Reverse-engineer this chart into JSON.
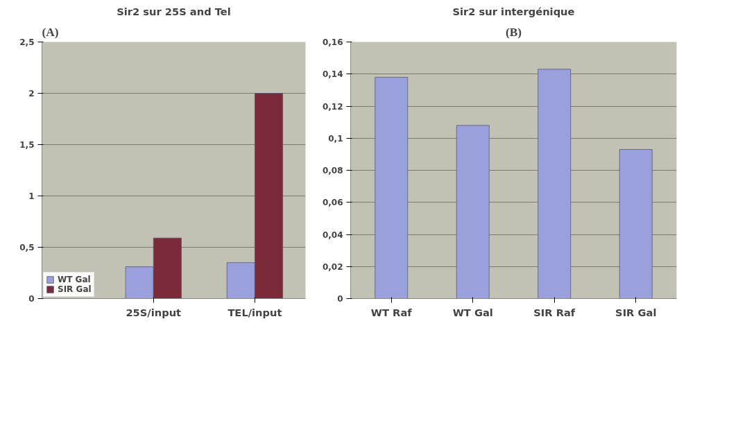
{
  "chart_data": [
    {
      "type": "bar",
      "title": "Sir2 sur 25S and Tel",
      "annotations": [
        "(A)"
      ],
      "categories": [
        "25S/input",
        "TEL/input"
      ],
      "series": [
        {
          "name": "WT Gal",
          "color": "#9aa0dc",
          "values": [
            0.31,
            0.35
          ]
        },
        {
          "name": "SIR Gal",
          "color": "#7b2a3a",
          "values": [
            0.59,
            2.0
          ]
        }
      ],
      "ylim": [
        0,
        2.5
      ],
      "yticks": [
        0,
        {
          "value": 0.5,
          "label": "0,5"
        },
        1,
        {
          "value": 1.5,
          "label": "1,5"
        },
        2,
        {
          "value": 2.5,
          "label": "2,5"
        }
      ],
      "grid": "y",
      "legend": "bottom left"
    },
    {
      "type": "bar",
      "title": "Sir2 sur intergénique",
      "annotations": [
        "(B)"
      ],
      "categories": [
        "WT Raf",
        "WT Gal",
        "SIR Raf",
        "SIR Gal"
      ],
      "series": [
        {
          "color": "#9aa0dc",
          "values": [
            0.138,
            0.108,
            0.143,
            0.093
          ]
        }
      ],
      "ylim": [
        0,
        0.16
      ],
      "yticks": [
        0,
        {
          "value": 0.02,
          "label": "0,02"
        },
        {
          "value": 0.04,
          "label": "0,04"
        },
        {
          "value": 0.06,
          "label": "0,06"
        },
        {
          "value": 0.08,
          "label": "0,08"
        },
        {
          "value": 0.1,
          "label": "0,1"
        },
        {
          "value": 0.12,
          "label": "0,12"
        },
        {
          "value": 0.14,
          "label": "0,14"
        },
        {
          "value": 0.16,
          "label": "0,16"
        }
      ],
      "grid": "y"
    }
  ]
}
